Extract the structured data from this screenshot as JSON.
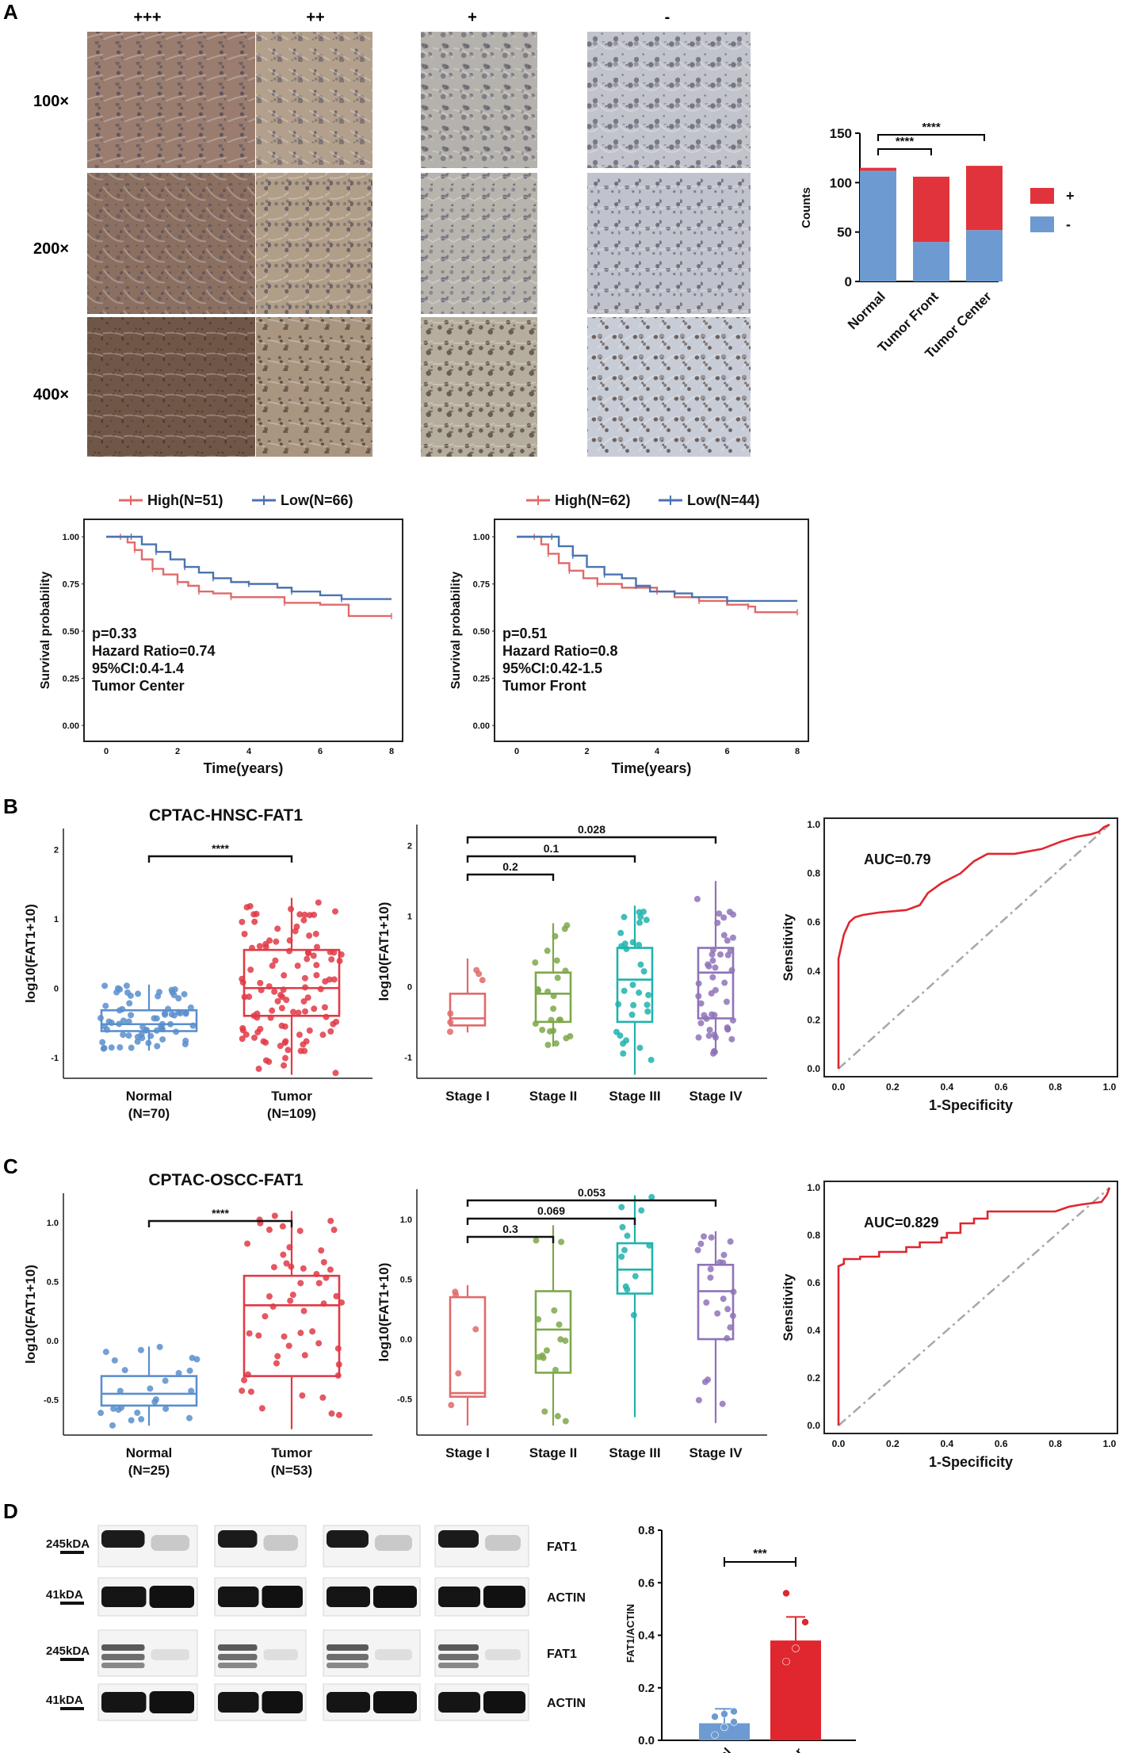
{
  "panel_labels": {
    "a": "A",
    "b": "B",
    "c": "C",
    "d": "D"
  },
  "ihc": {
    "columns": [
      "+++",
      "++",
      "+",
      "-"
    ],
    "rows": [
      "100×",
      "200×",
      "400×"
    ],
    "tints": [
      [
        "#9a7d6e",
        "#b3a08c",
        "#b5b2ad",
        "#c2c4cb"
      ],
      [
        "#8b6f60",
        "#b19e88",
        "#b7b4ae",
        "#c1c3cc"
      ],
      [
        "#6f5646",
        "#aa9680",
        "#b5ae9e",
        "#c8ccd6"
      ]
    ]
  },
  "chart_data": [
    {
      "id": "counts",
      "type": "bar",
      "stacked": true,
      "categories": [
        "Normal",
        "Tumor Front",
        "Tumor Center"
      ],
      "series": [
        {
          "name": "-",
          "color": "#6d9bd1",
          "values": [
            112,
            40,
            52
          ]
        },
        {
          "name": "+",
          "color": "#e1333b",
          "values": [
            3,
            66,
            65
          ]
        }
      ],
      "ylabel": "Counts",
      "ylim": [
        0,
        150
      ],
      "yticks": [
        0,
        50,
        100,
        150
      ],
      "legend": [
        "+",
        "-"
      ],
      "significance": [
        {
          "from": 0,
          "to": 1,
          "label": "****"
        },
        {
          "from": 0,
          "to": 2,
          "label": "****"
        }
      ]
    },
    {
      "id": "km-center",
      "type": "line",
      "series": [
        {
          "name": "High(N=51)",
          "color": "#e06a6a",
          "points": [
            [
              0,
              1.0
            ],
            [
              0.4,
              1.0
            ],
            [
              0.6,
              0.97
            ],
            [
              0.8,
              0.93
            ],
            [
              1.0,
              0.88
            ],
            [
              1.3,
              0.83
            ],
            [
              1.6,
              0.8
            ],
            [
              2.0,
              0.76
            ],
            [
              2.3,
              0.74
            ],
            [
              2.6,
              0.71
            ],
            [
              3.0,
              0.7
            ],
            [
              3.5,
              0.68
            ],
            [
              4.5,
              0.68
            ],
            [
              5.0,
              0.65
            ],
            [
              6.0,
              0.64
            ],
            [
              6.8,
              0.62
            ],
            [
              6.8,
              0.58
            ],
            [
              8.0,
              0.58
            ]
          ]
        },
        {
          "name": "Low(N=66)",
          "color": "#4a74b0",
          "points": [
            [
              0,
              1.0
            ],
            [
              0.7,
              1.0
            ],
            [
              1.0,
              0.96
            ],
            [
              1.4,
              0.92
            ],
            [
              1.8,
              0.88
            ],
            [
              2.2,
              0.84
            ],
            [
              2.6,
              0.81
            ],
            [
              3.0,
              0.78
            ],
            [
              3.5,
              0.76
            ],
            [
              4.0,
              0.75
            ],
            [
              4.8,
              0.73
            ],
            [
              5.2,
              0.71
            ],
            [
              6.0,
              0.69
            ],
            [
              6.6,
              0.67
            ],
            [
              8.0,
              0.67
            ]
          ]
        }
      ],
      "xlabel": "Time(years)",
      "ylabel": "Survival probability",
      "xlim": [
        0,
        8
      ],
      "ylim": [
        0,
        1
      ],
      "xticks": [
        0,
        2,
        4,
        6,
        8
      ],
      "yticks": [
        "0.00",
        "0.25",
        "0.50",
        "0.75",
        "1.00"
      ],
      "annotations": [
        "p=0.33",
        "Hazard Ratio=0.74",
        "95%CI:0.4-1.4",
        "Tumor Center"
      ]
    },
    {
      "id": "km-front",
      "type": "line",
      "series": [
        {
          "name": "High(N=62)",
          "color": "#e06a6a",
          "points": [
            [
              0,
              1.0
            ],
            [
              0.5,
              1.0
            ],
            [
              0.7,
              0.96
            ],
            [
              0.9,
              0.91
            ],
            [
              1.2,
              0.86
            ],
            [
              1.5,
              0.82
            ],
            [
              1.9,
              0.78
            ],
            [
              2.3,
              0.75
            ],
            [
              3.0,
              0.73
            ],
            [
              4.0,
              0.71
            ],
            [
              4.5,
              0.68
            ],
            [
              5.2,
              0.66
            ],
            [
              6.0,
              0.64
            ],
            [
              6.6,
              0.63
            ],
            [
              6.8,
              0.6
            ],
            [
              8.0,
              0.6
            ]
          ]
        },
        {
          "name": "Low(N=44)",
          "color": "#4a74b0",
          "points": [
            [
              0,
              1.0
            ],
            [
              1.0,
              1.0
            ],
            [
              1.2,
              0.95
            ],
            [
              1.6,
              0.9
            ],
            [
              2.0,
              0.84
            ],
            [
              2.5,
              0.8
            ],
            [
              3.0,
              0.78
            ],
            [
              3.4,
              0.74
            ],
            [
              3.8,
              0.71
            ],
            [
              4.5,
              0.7
            ],
            [
              5.0,
              0.68
            ],
            [
              6.0,
              0.66
            ],
            [
              8.0,
              0.66
            ]
          ]
        }
      ],
      "xlabel": "Time(years)",
      "ylabel": "Survival probability",
      "xlim": [
        0,
        8
      ],
      "ylim": [
        0,
        1
      ],
      "xticks": [
        0,
        2,
        4,
        6,
        8
      ],
      "yticks": [
        "0.00",
        "0.25",
        "0.50",
        "0.75",
        "1.00"
      ],
      "annotations": [
        "p=0.51",
        "Hazard Ratio=0.8",
        "95%CI:0.42-1.5",
        "Tumor Front"
      ]
    },
    {
      "id": "hnsc-box",
      "type": "box",
      "title": "CPTAC-HNSC-FAT1",
      "ylabel": "log10(FAT1+10)",
      "ylim": [
        -1.3,
        2.3
      ],
      "yticks": [
        -1,
        0,
        1,
        2
      ],
      "groups": [
        {
          "name": "Normal",
          "n": "(N=70)",
          "color": "#5b8fcc",
          "q1": -0.62,
          "median": -0.52,
          "q3": -0.32,
          "lo": -0.9,
          "hi": 0.05,
          "n_points": 70,
          "spread": 0.22
        },
        {
          "name": "Tumor",
          "n": "(N=109)",
          "color": "#e03a45",
          "q1": -0.4,
          "median": 0.0,
          "q3": 0.55,
          "lo": -1.25,
          "hi": 1.3,
          "n_points": 109,
          "spread": 0.55
        }
      ],
      "significance": [
        {
          "from": 0,
          "to": 1,
          "label": "****"
        }
      ]
    },
    {
      "id": "hnsc-stage",
      "type": "box",
      "ylabel": "log10(FAT1+10)",
      "ylim": [
        -1.3,
        2.3
      ],
      "yticks": [
        -1,
        0,
        1,
        2
      ],
      "groups": [
        {
          "name": "Stage I",
          "color": "#e06a6a",
          "q1": -0.55,
          "median": -0.45,
          "q3": -0.1,
          "lo": -0.65,
          "hi": 0.4,
          "n_points": 6,
          "spread": 0.35
        },
        {
          "name": "Stage II",
          "color": "#7da84a",
          "q1": -0.5,
          "median": -0.1,
          "q3": 0.2,
          "lo": -0.85,
          "hi": 0.9,
          "n_points": 24,
          "spread": 0.4
        },
        {
          "name": "Stage III",
          "color": "#20b3ab",
          "q1": -0.5,
          "median": 0.1,
          "q3": 0.55,
          "lo": -1.25,
          "hi": 1.15,
          "n_points": 30,
          "spread": 0.5
        },
        {
          "name": "Stage IV",
          "color": "#8f73b8",
          "q1": -0.45,
          "median": 0.2,
          "q3": 0.55,
          "lo": -0.95,
          "hi": 1.5,
          "n_points": 45,
          "spread": 0.45
        }
      ],
      "significance": [
        {
          "from": 0,
          "to": 1,
          "label": "0.2"
        },
        {
          "from": 0,
          "to": 2,
          "label": "0.1"
        },
        {
          "from": 0,
          "to": 3,
          "label": "0.028"
        }
      ]
    },
    {
      "id": "hnsc-roc",
      "type": "line",
      "auc_label": "AUC=0.79",
      "xlabel": "1-Specificity",
      "ylabel": "Sensitivity",
      "xlim": [
        0,
        1
      ],
      "ylim": [
        0,
        1
      ],
      "ticks": [
        "0.0",
        "0.2",
        "0.4",
        "0.6",
        "0.8",
        "1.0"
      ],
      "color": "#e0262e",
      "points": [
        [
          0,
          0
        ],
        [
          0,
          0.45
        ],
        [
          0.01,
          0.5
        ],
        [
          0.02,
          0.55
        ],
        [
          0.04,
          0.6
        ],
        [
          0.06,
          0.62
        ],
        [
          0.09,
          0.63
        ],
        [
          0.15,
          0.64
        ],
        [
          0.25,
          0.65
        ],
        [
          0.3,
          0.67
        ],
        [
          0.33,
          0.72
        ],
        [
          0.38,
          0.76
        ],
        [
          0.45,
          0.8
        ],
        [
          0.5,
          0.85
        ],
        [
          0.55,
          0.88
        ],
        [
          0.65,
          0.88
        ],
        [
          0.75,
          0.9
        ],
        [
          0.82,
          0.93
        ],
        [
          0.88,
          0.95
        ],
        [
          0.93,
          0.96
        ],
        [
          0.96,
          0.97
        ],
        [
          0.98,
          0.99
        ],
        [
          1,
          1
        ]
      ]
    },
    {
      "id": "oscc-box",
      "type": "box",
      "title": "CPTAC-OSCC-FAT1",
      "ylabel": "log10(FAT1+10)",
      "ylim": [
        -0.8,
        1.25
      ],
      "yticks": [
        -0.5,
        0.0,
        0.5,
        1.0
      ],
      "ytick_labels": [
        "-0.5",
        "0.0",
        "0.5",
        "1.0"
      ],
      "groups": [
        {
          "name": "Normal",
          "n": "(N=25)",
          "color": "#5b8fcc",
          "q1": -0.55,
          "median": -0.45,
          "q3": -0.3,
          "lo": -0.72,
          "hi": -0.05,
          "n_points": 25,
          "spread": 0.18
        },
        {
          "name": "Tumor",
          "n": "(N=53)",
          "color": "#e03a45",
          "q1": -0.3,
          "median": 0.3,
          "q3": 0.55,
          "lo": -0.75,
          "hi": 1.1,
          "n_points": 53,
          "spread": 0.45
        }
      ],
      "significance": [
        {
          "from": 0,
          "to": 1,
          "label": "****"
        }
      ]
    },
    {
      "id": "oscc-stage",
      "type": "box",
      "ylabel": "log10(FAT1+10)",
      "ylim": [
        -0.8,
        1.25
      ],
      "yticks": [
        -0.5,
        0.0,
        0.5,
        1.0
      ],
      "ytick_labels": [
        "-0.5",
        "0.0",
        "0.5",
        "1.0"
      ],
      "groups": [
        {
          "name": "Stage I",
          "color": "#e06a6a",
          "q1": -0.48,
          "median": -0.45,
          "q3": 0.35,
          "lo": -0.72,
          "hi": 0.45,
          "n_points": 5,
          "spread": 0.35
        },
        {
          "name": "Stage II",
          "color": "#7da84a",
          "q1": -0.28,
          "median": 0.08,
          "q3": 0.4,
          "lo": -0.72,
          "hi": 0.95,
          "n_points": 15,
          "spread": 0.35
        },
        {
          "name": "Stage III",
          "color": "#20b3ab",
          "q1": 0.38,
          "median": 0.58,
          "q3": 0.8,
          "lo": -0.65,
          "hi": 1.2,
          "n_points": 12,
          "spread": 0.35
        },
        {
          "name": "Stage IV",
          "color": "#8f73b8",
          "q1": 0.0,
          "median": 0.4,
          "q3": 0.62,
          "lo": -0.7,
          "hi": 0.9,
          "n_points": 22,
          "spread": 0.3
        }
      ],
      "significance": [
        {
          "from": 0,
          "to": 1,
          "label": "0.3"
        },
        {
          "from": 0,
          "to": 2,
          "label": "0.069"
        },
        {
          "from": 0,
          "to": 3,
          "label": "0.053"
        }
      ]
    },
    {
      "id": "oscc-roc",
      "type": "line",
      "auc_label": "AUC=0.829",
      "xlabel": "1-Specificity",
      "ylabel": "Sensitivity",
      "xlim": [
        0,
        1
      ],
      "ylim": [
        0,
        1
      ],
      "ticks": [
        "0.0",
        "0.2",
        "0.4",
        "0.6",
        "0.8",
        "1.0"
      ],
      "color": "#e0262e",
      "points": [
        [
          0,
          0
        ],
        [
          0,
          0.67
        ],
        [
          0.02,
          0.68
        ],
        [
          0.02,
          0.7
        ],
        [
          0.08,
          0.7
        ],
        [
          0.08,
          0.71
        ],
        [
          0.15,
          0.71
        ],
        [
          0.15,
          0.73
        ],
        [
          0.25,
          0.73
        ],
        [
          0.25,
          0.75
        ],
        [
          0.3,
          0.75
        ],
        [
          0.3,
          0.77
        ],
        [
          0.38,
          0.77
        ],
        [
          0.38,
          0.79
        ],
        [
          0.4,
          0.79
        ],
        [
          0.4,
          0.81
        ],
        [
          0.45,
          0.81
        ],
        [
          0.45,
          0.85
        ],
        [
          0.5,
          0.85
        ],
        [
          0.5,
          0.87
        ],
        [
          0.55,
          0.87
        ],
        [
          0.55,
          0.9
        ],
        [
          0.8,
          0.9
        ],
        [
          0.85,
          0.92
        ],
        [
          0.9,
          0.93
        ],
        [
          0.97,
          0.94
        ],
        [
          0.99,
          0.97
        ],
        [
          1,
          1
        ]
      ]
    },
    {
      "id": "wb-bar",
      "type": "bar",
      "categories": [
        "Normal",
        "Tumor"
      ],
      "values": [
        0.065,
        0.38
      ],
      "errors": [
        0.055,
        0.09
      ],
      "colors": [
        "#6d9bd1",
        "#e0262e"
      ],
      "points": [
        [
          0.02,
          0.05,
          0.07,
          0.09,
          0.1,
          0.11
        ],
        [
          0.3,
          0.35,
          0.45,
          0.56
        ]
      ],
      "ylabel": "FAT1/ACTIN",
      "ylim": [
        0,
        0.8
      ],
      "yticks": [
        "0.0",
        "0.2",
        "0.4",
        "0.6",
        "0.8"
      ],
      "significance": [
        {
          "from": 0,
          "to": 1,
          "label": "***"
        }
      ]
    }
  ],
  "western": {
    "rows": [
      {
        "marker": "245kDA",
        "label": "FAT1",
        "type": "fat1a"
      },
      {
        "marker": "41kDA",
        "label": "ACTIN",
        "type": "actin"
      },
      {
        "marker": "245kDA",
        "label": "FAT1",
        "type": "fat1b"
      },
      {
        "marker": "41kDA",
        "label": "ACTIN",
        "type": "actin"
      }
    ]
  }
}
